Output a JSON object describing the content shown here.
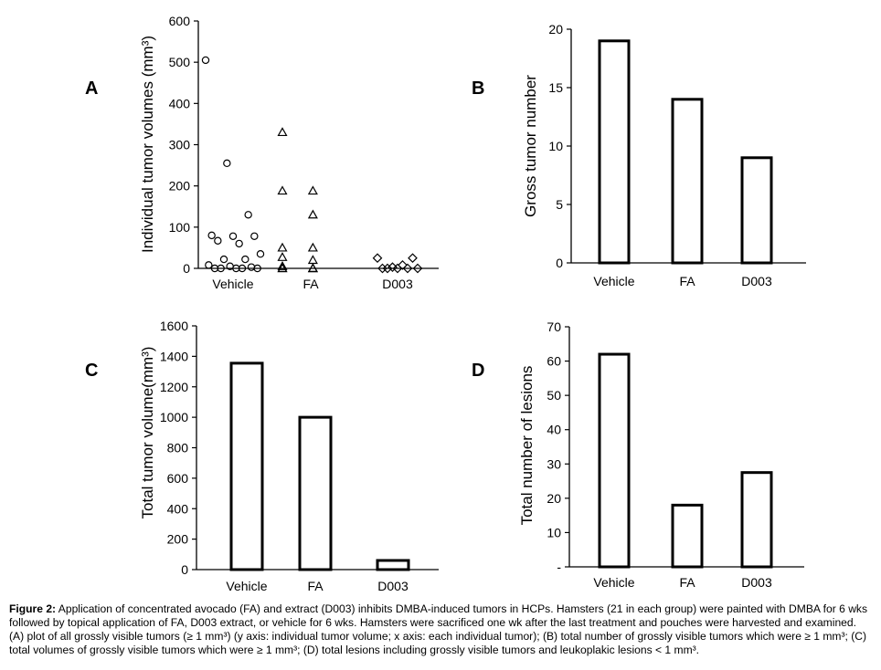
{
  "panels": [
    {
      "id": "A",
      "letter": "A",
      "chart_data": {
        "type": "scatter",
        "ylabel": "Individual tumor volumes (mm³)",
        "ylim": [
          0,
          600
        ],
        "yticks": [
          0,
          100,
          200,
          300,
          400,
          500,
          600
        ],
        "categories": [
          "Vehicle",
          "FA",
          "D003"
        ],
        "series": [
          {
            "category": "Vehicle",
            "marker": "circle",
            "values": [
              505,
              255,
              130,
              80,
              78,
              78,
              67,
              60,
              35,
              22,
              22,
              8,
              5,
              3,
              0,
              0,
              0,
              0,
              0
            ]
          },
          {
            "category": "FA",
            "marker": "triangle",
            "values": [
              330,
              188,
              188,
              130,
              50,
              50,
              27,
              20,
              5,
              0,
              0,
              0,
              0,
              0
            ]
          },
          {
            "category": "D003",
            "marker": "diamond",
            "values": [
              25,
              25,
              8,
              3,
              0,
              0,
              0,
              0,
              0
            ]
          }
        ],
        "grid": false
      }
    },
    {
      "id": "B",
      "letter": "B",
      "chart_data": {
        "type": "bar",
        "ylabel": "Gross tumor number",
        "categories": [
          "Vehicle",
          "FA",
          "D003"
        ],
        "values": [
          19,
          14,
          9
        ],
        "ylim": [
          0,
          20
        ],
        "yticks": [
          "0",
          "5",
          "10",
          "15",
          "20"
        ],
        "grid": false
      }
    },
    {
      "id": "C",
      "letter": "C",
      "chart_data": {
        "type": "bar",
        "ylabel": "Total tumor volume(mm³)",
        "categories": [
          "Vehicle",
          "FA",
          "D003"
        ],
        "values": [
          1355,
          1000,
          60
        ],
        "ylim": [
          0,
          1600
        ],
        "yticks": [
          "0",
          "200",
          "400",
          "600",
          "800",
          "1000",
          "1200",
          "1400",
          "1600"
        ],
        "grid": false
      }
    },
    {
      "id": "D",
      "letter": "D",
      "chart_data": {
        "type": "bar",
        "ylabel": "Total number of lesions",
        "categories": [
          "Vehicle",
          "FA",
          "D003"
        ],
        "values": [
          62,
          18,
          27.5
        ],
        "ylim": [
          0,
          70
        ],
        "yticks": [
          "-",
          "10",
          "20",
          "30",
          "40",
          "50",
          "60",
          "70"
        ],
        "grid": false
      }
    }
  ],
  "caption": {
    "label": "Figure 2:",
    "text": " Application of concentrated avocado (FA) and extract (D003) inhibits DMBA-induced tumors in HCPs. Hamsters (21 in each group) were painted with DMBA for 6 wks followed by topical application of FA, D003 extract, or vehicle for 6 wks. Hamsters were sacrificed one wk after the last treatment and pouches were harvested and examined. (A) plot of all grossly visible tumors (≥ 1 mm³) (y axis: individual tumor volume; x axis: each individual tumor); (B) total number of grossly visible tumors which were ≥ 1 mm³; (C) total volumes of grossly visible tumors which were ≥ 1 mm³; (D) total lesions including grossly visible tumors and leukoplakic lesions < 1 mm³."
  }
}
